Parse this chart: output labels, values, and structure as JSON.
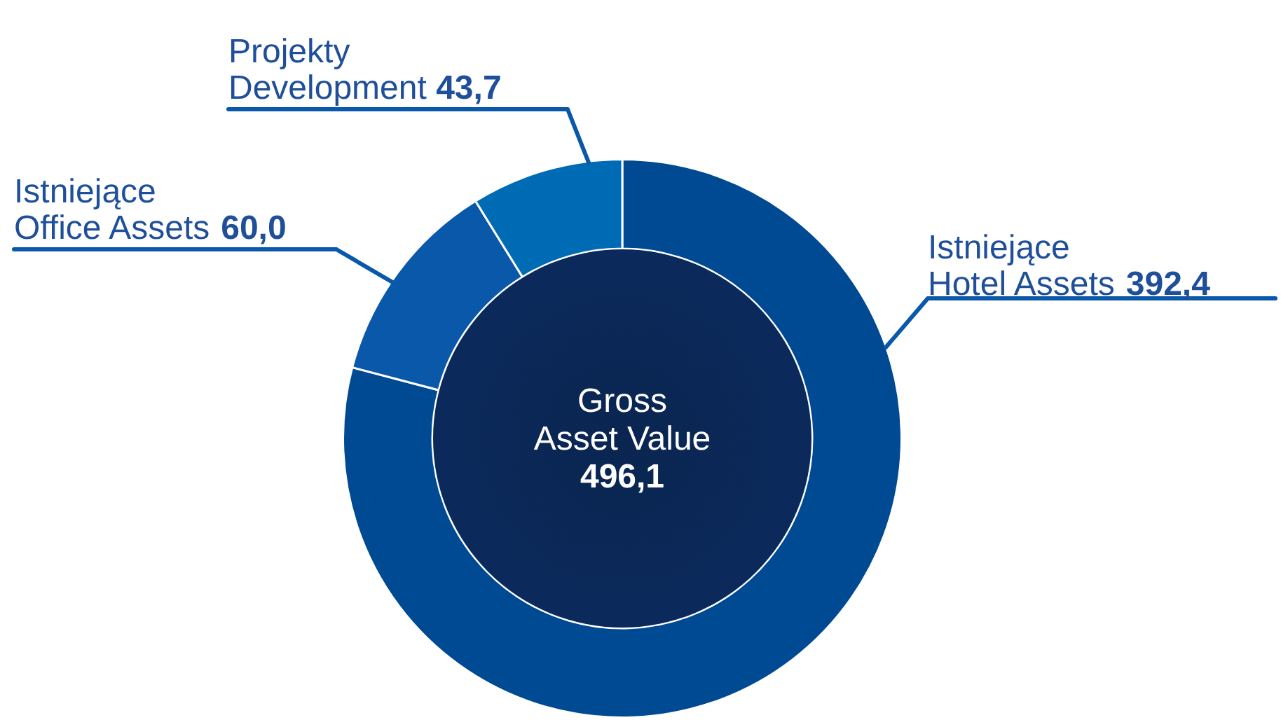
{
  "chart_data": {
    "type": "donut",
    "categories": [
      "Istniejące Hotel Assets",
      "Istniejące Office Assets",
      "Projekty Development"
    ],
    "values": [
      392.4,
      60.0,
      43.7
    ],
    "value_labels": [
      "392,4",
      "60,0",
      "43,7"
    ],
    "colors": [
      "#004a93",
      "#0a58aa",
      "#006bb5"
    ],
    "annotations": [
      "Gross Asset Value",
      "496,1"
    ],
    "legend": false
  }
}
